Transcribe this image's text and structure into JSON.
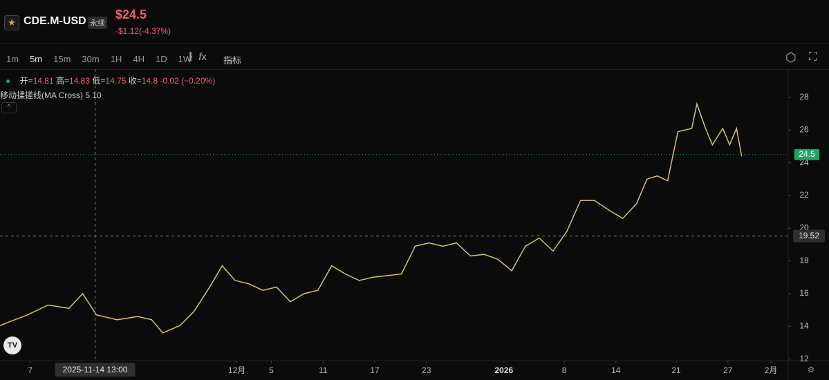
{
  "header": {
    "symbol": "CDE.M-USD",
    "badge": "永续",
    "price": "$24.5",
    "change": "-$1.12(-4.37%)"
  },
  "toolbar": {
    "intervals": [
      "1m",
      "5m",
      "15m",
      "30m",
      "1H",
      "4H",
      "1D",
      "1W"
    ],
    "indicators": "指标"
  },
  "ohlc": {
    "open_label": "开=",
    "open": 14.81,
    "high_label": "高=",
    "high": 14.83,
    "low_label": "低=",
    "low": 14.75,
    "close_label": "收=",
    "close": 14.8,
    "change": "-0.02 (−0.20%)"
  },
  "chart_data": {
    "type": "line",
    "indicator": "移动揉搓线(MA Cross) 5 10",
    "color": "#d8c46a",
    "x": [
      2.5,
      5.7,
      8.1,
      10.5,
      12.1,
      13.7,
      16.1,
      18.5,
      20.1,
      21.4,
      23.4,
      25.0,
      26.6,
      28.3,
      29.8,
      31.4,
      33.0,
      34.6,
      36.2,
      37.8,
      39.4,
      41.0,
      42.6,
      44.2,
      45.8,
      47.5,
      49.1,
      50.7,
      52.3,
      53.9,
      55.5,
      57.1,
      58.7,
      60.3,
      61.9,
      63.5,
      65.1,
      66.7,
      68.3,
      69.9,
      71.5,
      73.2,
      74.8,
      76.4,
      77.6,
      78.8,
      80.0,
      81.2,
      82.8,
      83.4,
      84.4,
      85.2,
      86.4,
      87.2,
      88.0,
      88.6
    ],
    "values": [
      14.05,
      14.7,
      15.3,
      15.1,
      16.0,
      14.7,
      14.4,
      14.6,
      14.4,
      13.6,
      14.05,
      14.9,
      16.2,
      17.7,
      16.8,
      16.6,
      16.2,
      16.4,
      15.5,
      16.0,
      16.2,
      17.7,
      17.2,
      16.8,
      17.0,
      17.1,
      17.2,
      18.9,
      19.1,
      18.9,
      19.1,
      18.3,
      18.4,
      18.1,
      17.4,
      18.9,
      19.4,
      18.6,
      19.8,
      21.7,
      21.7,
      21.1,
      20.6,
      21.5,
      23.0,
      23.2,
      22.9,
      25.9,
      26.1,
      27.6,
      26.1,
      25.1,
      26.1,
      25.1,
      26.1,
      24.4
    ],
    "xlim": [
      2.5,
      94
    ],
    "xticks": [
      {
        "value": 6,
        "label": "7"
      },
      {
        "value": 30,
        "label": "12月"
      },
      {
        "value": 34,
        "label": "5"
      },
      {
        "value": 40,
        "label": "11"
      },
      {
        "value": 46,
        "label": "17"
      },
      {
        "value": 52,
        "label": "23"
      },
      {
        "value": 61,
        "label": "2026"
      },
      {
        "value": 68,
        "label": "8"
      },
      {
        "value": 74,
        "label": "14"
      },
      {
        "value": 81,
        "label": "21"
      },
      {
        "value": 87,
        "label": "27"
      },
      {
        "value": 92,
        "label": "2月"
      }
    ],
    "ylim": [
      11.9,
      29.73
    ],
    "yticks": [
      12,
      14,
      16,
      18,
      20,
      22,
      24,
      26,
      28
    ],
    "last_price": 24.5,
    "last_color": "#1fa463",
    "crosshair": {
      "x": 13.54,
      "x_label": "2025-11-14 13:00",
      "y": 19.52
    }
  }
}
